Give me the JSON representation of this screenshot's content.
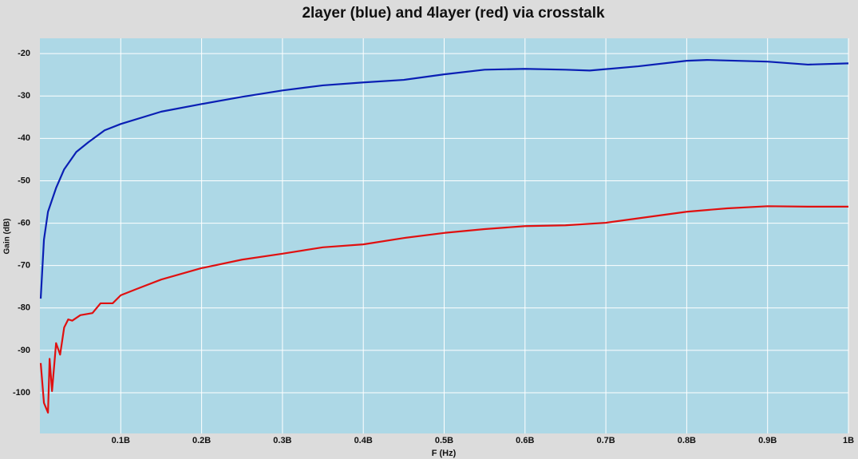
{
  "chart_data": {
    "type": "line",
    "title": "2layer (blue) and 4layer (red) via crosstalk",
    "x_label": "F (Hz)",
    "y_label": "Gain (dB)",
    "grid": true,
    "xlim": [
      0,
      1000000000
    ],
    "ylim": [
      -109.6,
      -16.4
    ],
    "xticks": [
      {
        "value": 100000000,
        "label": "0.1B"
      },
      {
        "value": 200000000,
        "label": "0.2B"
      },
      {
        "value": 300000000,
        "label": "0.3B"
      },
      {
        "value": 400000000,
        "label": "0.4B"
      },
      {
        "value": 500000000,
        "label": "0.5B"
      },
      {
        "value": 600000000,
        "label": "0.6B"
      },
      {
        "value": 700000000,
        "label": "0.7B"
      },
      {
        "value": 800000000,
        "label": "0.8B"
      },
      {
        "value": 900000000,
        "label": "0.9B"
      },
      {
        "value": 1000000000,
        "label": "1B"
      }
    ],
    "yticks": [
      -20,
      -30,
      -40,
      -50,
      -60,
      -70,
      -80,
      -90,
      -100
    ],
    "series": [
      {
        "color": "#0a1fb4",
        "x": [
          1000000,
          5000000,
          10000000,
          20000000,
          30000000,
          45000000,
          60000000,
          80000000,
          100000000,
          150000000,
          200000000,
          250000000,
          300000000,
          350000000,
          400000000,
          450000000,
          500000000,
          550000000,
          600000000,
          650000000,
          680000000,
          740000000,
          800000000,
          825000000,
          900000000,
          950000000,
          1000000000
        ],
        "values": [
          -77.8,
          -63.9,
          -57.3,
          -51.7,
          -47.3,
          -43.2,
          -40.9,
          -38.1,
          -36.6,
          -33.7,
          -31.9,
          -30.2,
          -28.7,
          -27.5,
          -26.8,
          -26.2,
          -24.9,
          -23.8,
          -23.6,
          -23.8,
          -24.0,
          -23.0,
          -21.7,
          -21.5,
          -21.9,
          -22.6,
          -22.3
        ]
      },
      {
        "color": "#e01010",
        "x": [
          1000000,
          5000000,
          10000000,
          12000000,
          15000000,
          20000000,
          25000000,
          30000000,
          35000000,
          40000000,
          50000000,
          65000000,
          75000000,
          90000000,
          100000000,
          120000000,
          150000000,
          200000000,
          250000000,
          300000000,
          350000000,
          400000000,
          450000000,
          500000000,
          550000000,
          600000000,
          650000000,
          700000000,
          750000000,
          800000000,
          850000000,
          900000000,
          950000000,
          1000000000
        ],
        "values": [
          -93,
          -102.4,
          -104.7,
          -92,
          -99.6,
          -88.3,
          -91,
          -84.6,
          -82.7,
          -83,
          -81.7,
          -81.2,
          -78.9,
          -78.9,
          -77,
          -75.5,
          -73.3,
          -70.6,
          -68.6,
          -67.2,
          -65.7,
          -65,
          -63.5,
          -62.3,
          -61.4,
          -60.7,
          -60.5,
          -59.9,
          -58.6,
          -57.3,
          -56.5,
          -56,
          -56.1,
          -56.1
        ]
      }
    ]
  }
}
